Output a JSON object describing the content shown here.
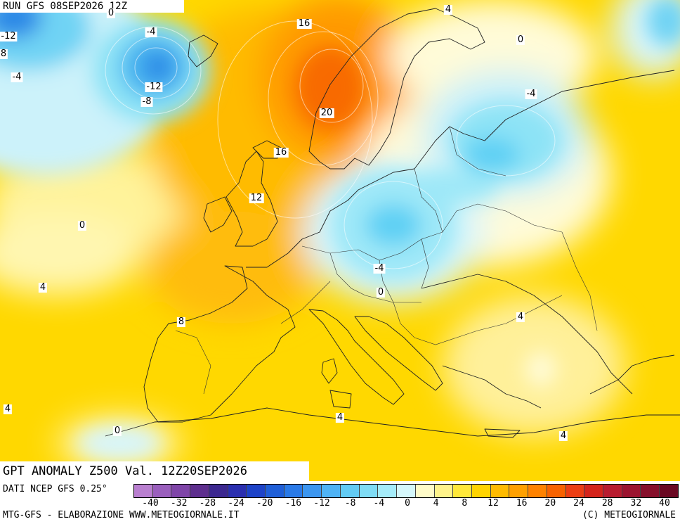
{
  "header": {
    "run_label": "RUN GFS 08SEP2026 12Z"
  },
  "title": "GPT ANOMALY Z500 Val. 12Z20SEP2026",
  "footer": {
    "source": "DATI NCEP GFS 0.25°",
    "credit_left": "MTG-GFS - ELABORAZIONE WWW.METEOGIORNALE.IT",
    "credit_right": "(C) METEOGIORNALE"
  },
  "colorbar": {
    "colors": [
      "#b97fd0",
      "#9a5fbd",
      "#7f45a8",
      "#5e2f8e",
      "#3c2890",
      "#2a2fb0",
      "#1d43c8",
      "#1f5fd8",
      "#2a7ae8",
      "#3c96f0",
      "#4fb3f5",
      "#62cbf4",
      "#7fdcf5",
      "#a5ecfa",
      "#d5f7fb",
      "#fffbc8",
      "#fff38a",
      "#ffe83a",
      "#ffd400",
      "#ffbb00",
      "#ffa000",
      "#ff8200",
      "#f86200",
      "#ec3e14",
      "#d4241c",
      "#b81c30",
      "#9c1430",
      "#86102c",
      "#6a0822"
    ],
    "tick_labels": [
      "-40",
      "-32",
      "-28",
      "-24",
      "-20",
      "-16",
      "-12",
      "-8",
      "-4",
      "0",
      "4",
      "8",
      "12",
      "16",
      "20",
      "24",
      "28",
      "32",
      "40"
    ]
  },
  "contour_labels": [
    {
      "id": "c1",
      "text": "-12"
    },
    {
      "id": "c2",
      "text": "8"
    },
    {
      "id": "c3",
      "text": "-4"
    },
    {
      "id": "c4",
      "text": "-4"
    },
    {
      "id": "c5",
      "text": "-12"
    },
    {
      "id": "c6",
      "text": "-8"
    },
    {
      "id": "c7",
      "text": "0"
    },
    {
      "id": "c8",
      "text": "16"
    },
    {
      "id": "c9",
      "text": "20"
    },
    {
      "id": "c10",
      "text": "16"
    },
    {
      "id": "c11",
      "text": "12"
    },
    {
      "id": "c12",
      "text": "4"
    },
    {
      "id": "c13",
      "text": "0"
    },
    {
      "id": "c14",
      "text": "-4"
    },
    {
      "id": "c15",
      "text": "0"
    },
    {
      "id": "c16",
      "text": "-4"
    },
    {
      "id": "c17",
      "text": "0"
    },
    {
      "id": "c18",
      "text": "4"
    },
    {
      "id": "c19",
      "text": "8"
    },
    {
      "id": "c20",
      "text": "4"
    },
    {
      "id": "c21",
      "text": "4"
    },
    {
      "id": "c22",
      "text": "0"
    },
    {
      "id": "c23",
      "text": "4"
    },
    {
      "id": "c24",
      "text": "4"
    }
  ]
}
